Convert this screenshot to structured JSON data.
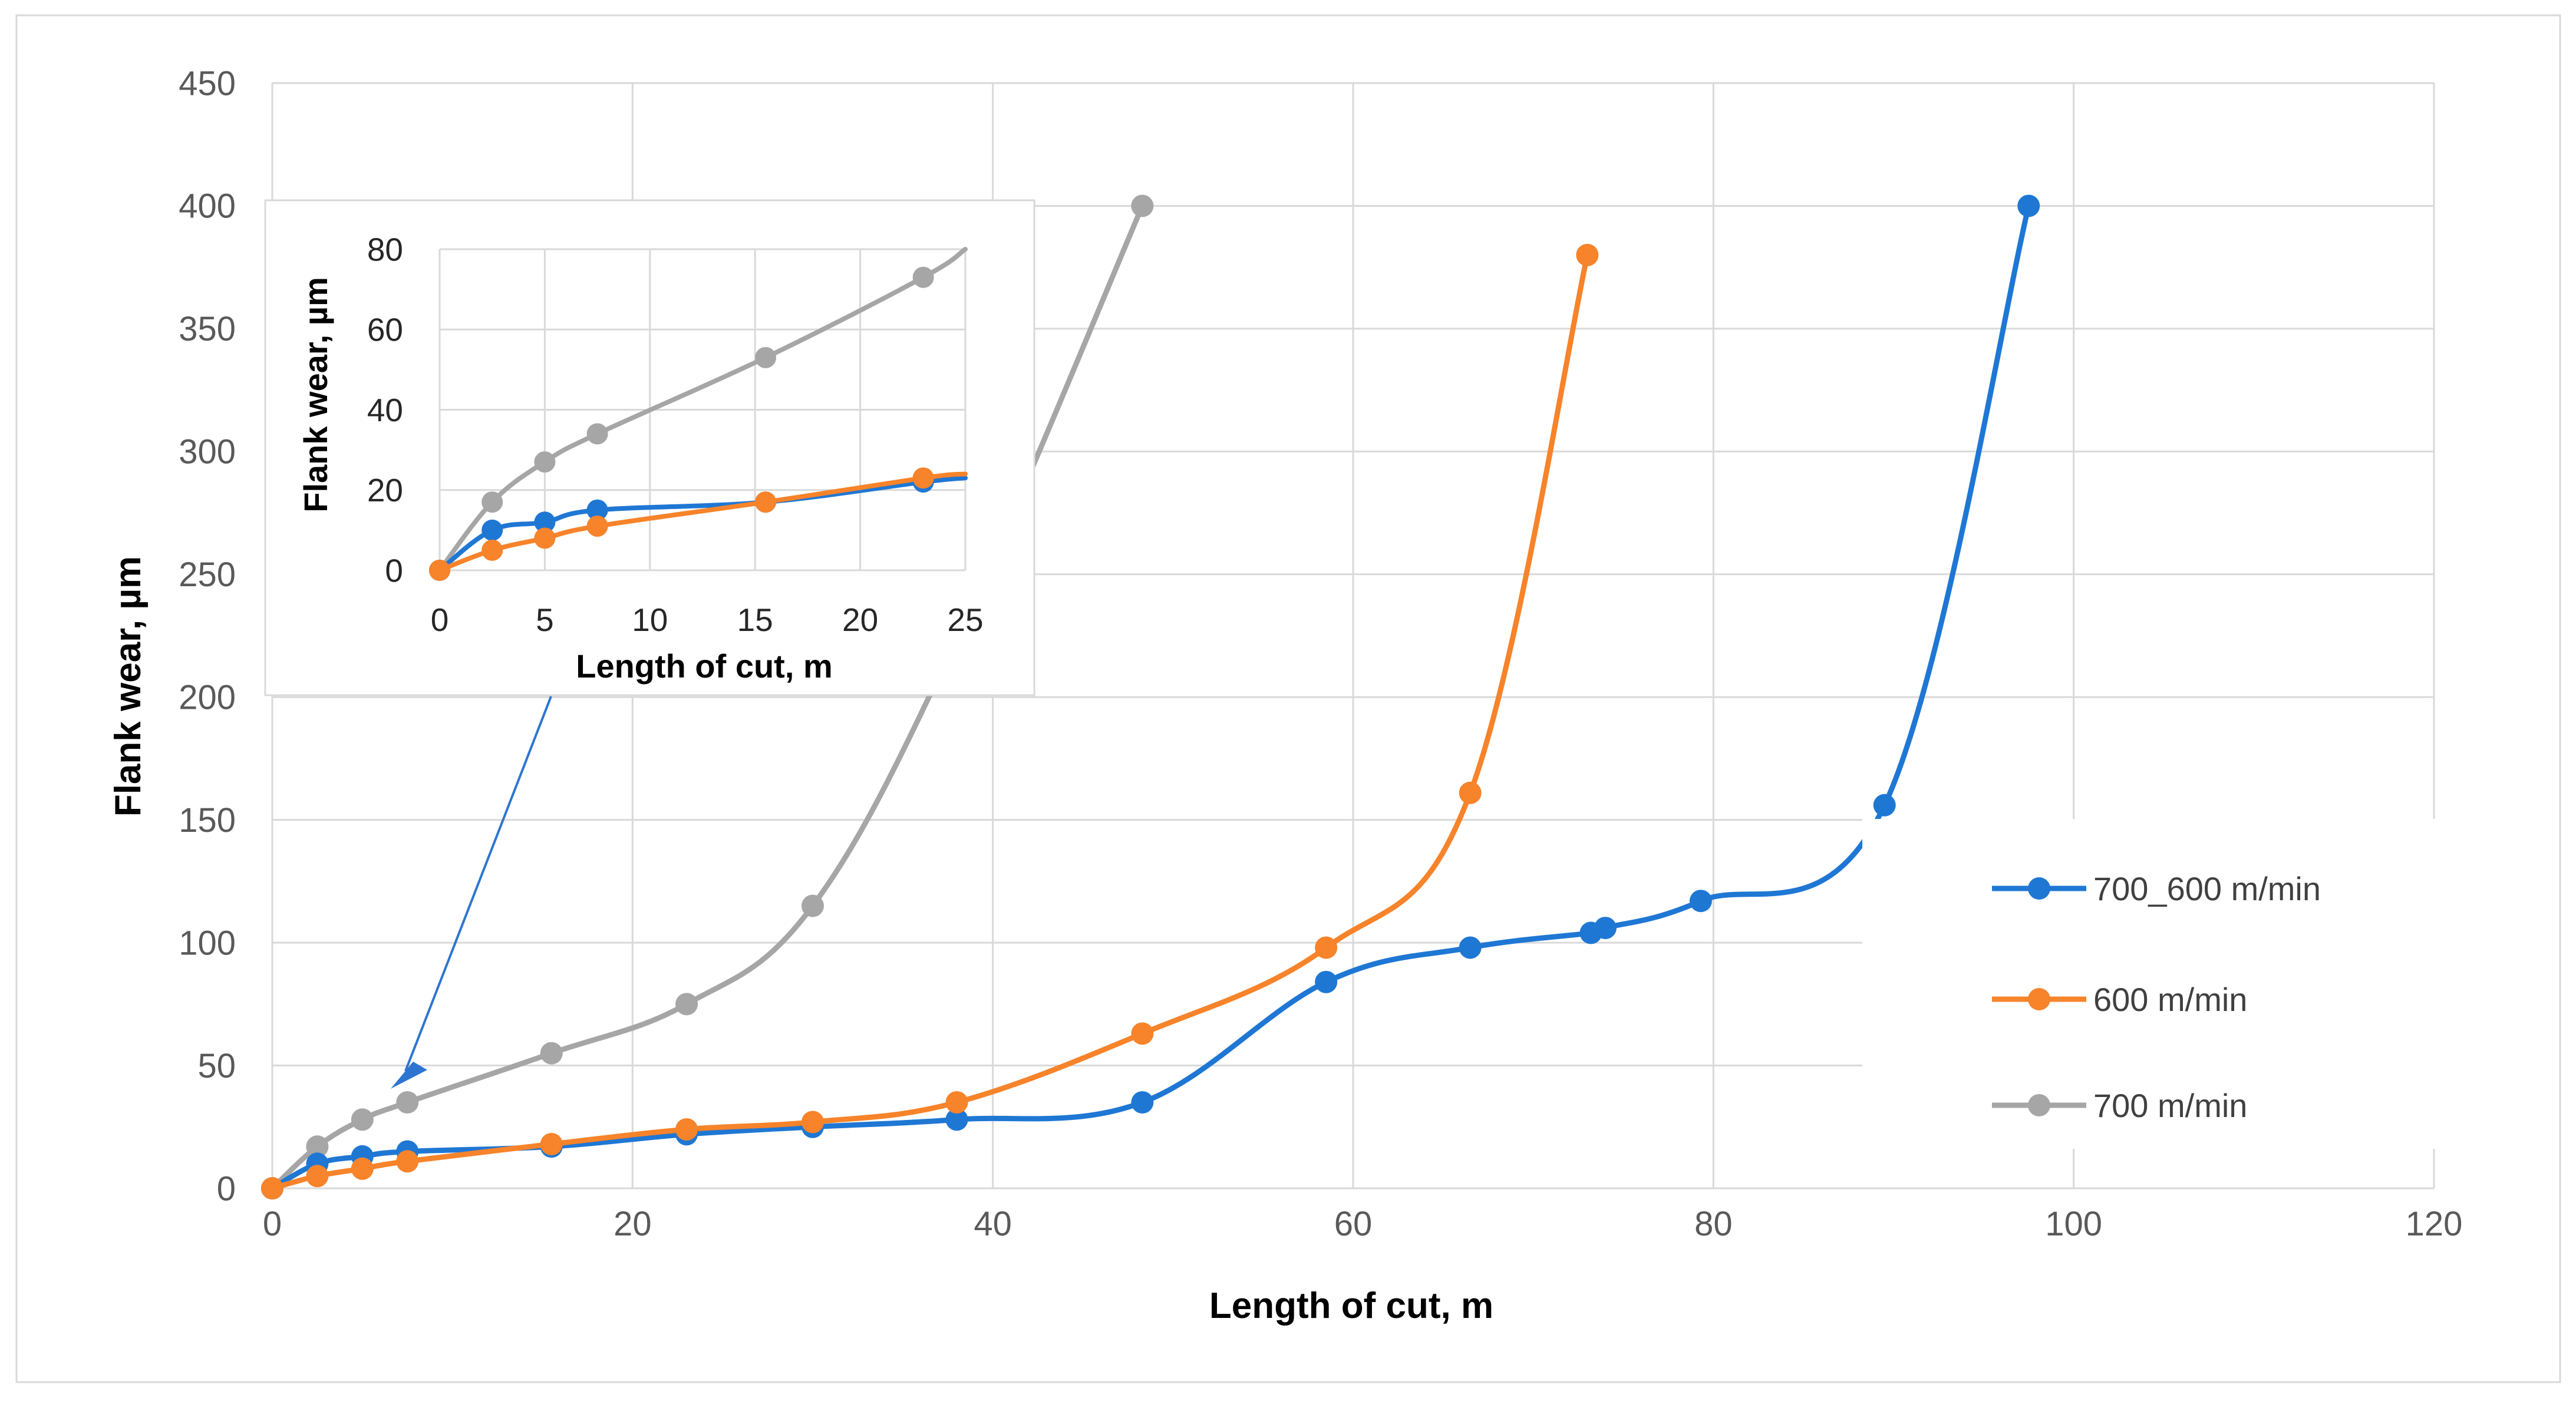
{
  "colors": {
    "series_700_600": "#1f77d4",
    "series_600": "#f7832a",
    "series_700": "#a6a6a6",
    "grid": "#d9d9d9",
    "arrow": "#2e75d1"
  },
  "chart_data": [
    {
      "type": "line",
      "title": "",
      "xlabel": "Length of cut, m",
      "ylabel": "Flank wear, µm",
      "xlim": [
        0,
        120
      ],
      "ylim": [
        0,
        450
      ],
      "x_ticks": [
        0,
        20,
        40,
        60,
        80,
        100,
        120
      ],
      "y_ticks": [
        0,
        50,
        100,
        150,
        200,
        250,
        300,
        350,
        400,
        450
      ],
      "grid": true,
      "legend_position": "right",
      "series": [
        {
          "name": "700_600 m/min",
          "color": "#1f77d4",
          "points": [
            [
              0,
              0
            ],
            [
              2.5,
              10
            ],
            [
              5,
              13
            ],
            [
              7.5,
              15
            ],
            [
              15.5,
              17
            ],
            [
              23,
              22
            ],
            [
              30,
              25
            ],
            [
              38,
              28
            ],
            [
              48.3,
              35
            ],
            [
              58.5,
              84
            ],
            [
              66.5,
              98
            ],
            [
              73.2,
              104
            ],
            [
              74,
              106
            ],
            [
              79.3,
              117
            ],
            [
              89.5,
              156
            ],
            [
              97.5,
              400
            ]
          ]
        },
        {
          "name": "600 m/min",
          "color": "#f7832a",
          "points": [
            [
              0,
              0
            ],
            [
              2.5,
              5
            ],
            [
              5,
              8
            ],
            [
              7.5,
              11
            ],
            [
              15.5,
              18
            ],
            [
              23,
              24
            ],
            [
              30,
              27
            ],
            [
              38,
              35
            ],
            [
              48.3,
              63
            ],
            [
              58.5,
              98
            ],
            [
              66.5,
              161
            ],
            [
              73,
              380
            ]
          ]
        },
        {
          "name": "700 m/min",
          "color": "#a6a6a6",
          "points": [
            [
              0,
              0
            ],
            [
              2.5,
              17
            ],
            [
              5,
              28
            ],
            [
              7.5,
              35
            ],
            [
              15.5,
              55
            ],
            [
              23,
              75
            ],
            [
              30,
              115
            ],
            [
              38,
              224
            ],
            [
              48.3,
              400
            ]
          ]
        }
      ]
    },
    {
      "type": "line",
      "title": "",
      "xlabel": "Length of cut, m",
      "ylabel": "Flank wear, µm",
      "xlim": [
        0,
        25
      ],
      "ylim": [
        0,
        80
      ],
      "x_ticks": [
        0,
        5,
        10,
        15,
        20,
        25
      ],
      "y_ticks": [
        0,
        20,
        40,
        60,
        80
      ],
      "grid": true,
      "series": [
        {
          "name": "700_600 m/min",
          "color": "#1f77d4",
          "points": [
            [
              0,
              0
            ],
            [
              2.5,
              10
            ],
            [
              5,
              12
            ],
            [
              7.5,
              15
            ],
            [
              15.5,
              17
            ],
            [
              23,
              22
            ],
            [
              25,
              23
            ]
          ]
        },
        {
          "name": "600 m/min",
          "color": "#f7832a",
          "points": [
            [
              0,
              0
            ],
            [
              2.5,
              5
            ],
            [
              5,
              8
            ],
            [
              7.5,
              11
            ],
            [
              15.5,
              17
            ],
            [
              23,
              23
            ],
            [
              25,
              24
            ]
          ]
        },
        {
          "name": "700 m/min",
          "color": "#a6a6a6",
          "points": [
            [
              0,
              0
            ],
            [
              2.5,
              17
            ],
            [
              5,
              27
            ],
            [
              7.5,
              34
            ],
            [
              15.5,
              53
            ],
            [
              23,
              73
            ],
            [
              25,
              80
            ]
          ]
        }
      ]
    }
  ]
}
